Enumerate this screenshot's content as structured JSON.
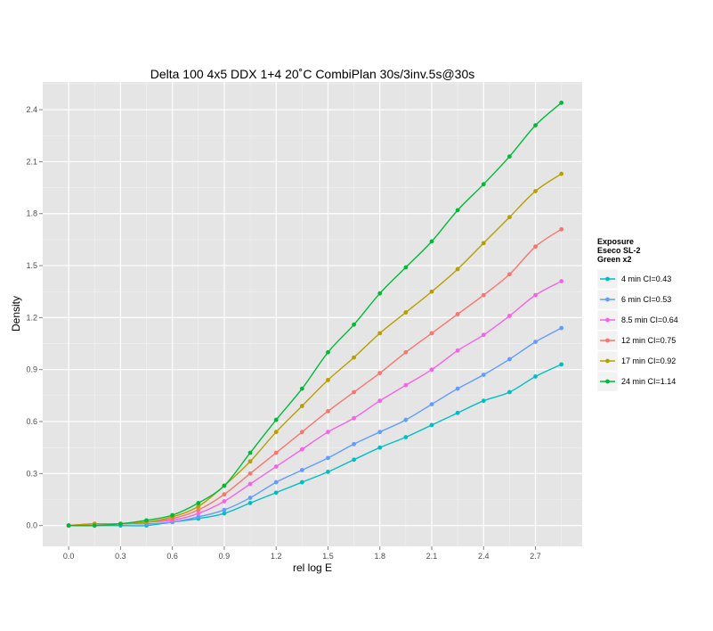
{
  "chart_data": {
    "type": "line",
    "title": "Delta 100 4x5 DDX 1+4 20˚C CombiPlan 30s/3inv.5s@30s",
    "xlabel": "rel log E",
    "ylabel": "Density",
    "xlim": [
      -0.15,
      2.97
    ],
    "ylim": [
      -0.12,
      2.56
    ],
    "x_ticks": [
      0.0,
      0.3,
      0.6,
      0.9,
      1.2,
      1.5,
      1.8,
      2.1,
      2.4,
      2.7
    ],
    "x_tick_labels": [
      "0.0",
      "0.3",
      "0.6",
      "0.9",
      "1.2",
      "1.5",
      "1.8",
      "2.1",
      "2.4",
      "2.7"
    ],
    "y_ticks": [
      0.0,
      0.3,
      0.6,
      0.9,
      1.2,
      1.5,
      1.8,
      2.1,
      2.4
    ],
    "y_tick_labels": [
      "0.0",
      "0.3",
      "0.6",
      "0.9",
      "1.2",
      "1.5",
      "1.8",
      "2.1",
      "2.4"
    ],
    "grid": true,
    "legend": {
      "title_lines": [
        "Exposure",
        "Eseco SL-2",
        "Green x2"
      ],
      "placement": "right"
    },
    "x": [
      0.0,
      0.15,
      0.3,
      0.45,
      0.6,
      0.75,
      0.9,
      1.05,
      1.2,
      1.35,
      1.5,
      1.65,
      1.8,
      1.95,
      2.1,
      2.25,
      2.4,
      2.55,
      2.7,
      2.85
    ],
    "series": [
      {
        "name": "4 min CI=0.43",
        "color": "#00BFC4",
        "values": [
          0.0,
          0.0,
          0.0,
          0.0,
          0.02,
          0.04,
          0.07,
          0.13,
          0.19,
          0.25,
          0.31,
          0.38,
          0.45,
          0.51,
          0.58,
          0.65,
          0.72,
          0.77,
          0.86,
          0.93
        ]
      },
      {
        "name": "6 min CI=0.53",
        "color": "#619CFF",
        "values": [
          0.0,
          0.0,
          0.01,
          0.01,
          0.02,
          0.05,
          0.09,
          0.16,
          0.25,
          0.32,
          0.39,
          0.47,
          0.54,
          0.61,
          0.7,
          0.79,
          0.87,
          0.96,
          1.06,
          1.14
        ]
      },
      {
        "name": "8.5 min CI=0.64",
        "color": "#F564E3",
        "values": [
          0.0,
          0.01,
          0.01,
          0.02,
          0.03,
          0.07,
          0.14,
          0.24,
          0.34,
          0.44,
          0.54,
          0.62,
          0.72,
          0.81,
          0.9,
          1.01,
          1.1,
          1.21,
          1.33,
          1.41
        ]
      },
      {
        "name": "12 min CI=0.75",
        "color": "#F8766D",
        "values": [
          0.0,
          0.01,
          0.01,
          0.02,
          0.04,
          0.09,
          0.18,
          0.3,
          0.42,
          0.54,
          0.66,
          0.77,
          0.88,
          1.0,
          1.11,
          1.22,
          1.33,
          1.45,
          1.61,
          1.71
        ]
      },
      {
        "name": "17 min CI=0.92",
        "color": "#B79F00",
        "values": [
          0.0,
          0.01,
          0.01,
          0.02,
          0.05,
          0.11,
          0.23,
          0.37,
          0.54,
          0.69,
          0.84,
          0.97,
          1.11,
          1.23,
          1.35,
          1.48,
          1.63,
          1.78,
          1.93,
          2.03
        ]
      },
      {
        "name": "24 min CI=1.14",
        "color": "#00BA38",
        "values": [
          0.0,
          0.0,
          0.01,
          0.03,
          0.06,
          0.13,
          0.23,
          0.42,
          0.61,
          0.79,
          1.0,
          1.16,
          1.34,
          1.49,
          1.64,
          1.82,
          1.97,
          2.13,
          2.31,
          2.44
        ]
      }
    ]
  }
}
